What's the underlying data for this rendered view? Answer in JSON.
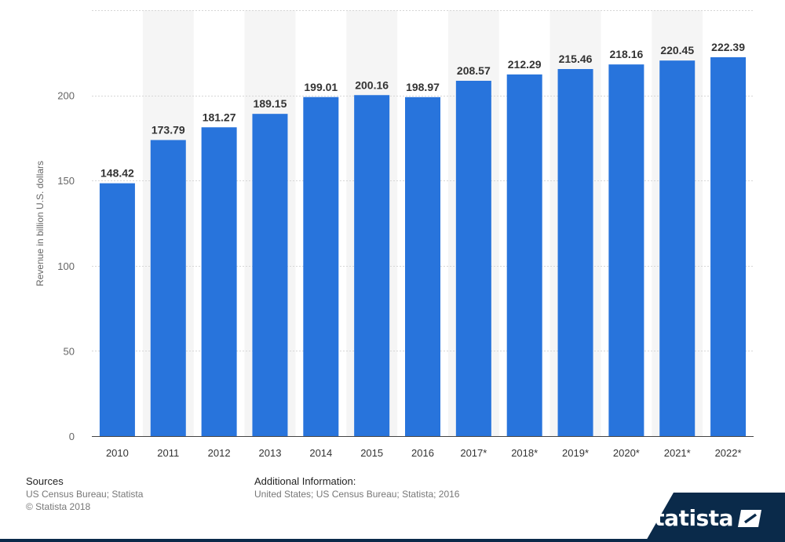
{
  "chart_data": {
    "type": "bar",
    "categories": [
      "2010",
      "2011",
      "2012",
      "2013",
      "2014",
      "2015",
      "2016",
      "2017*",
      "2018*",
      "2019*",
      "2020*",
      "2021*",
      "2022*"
    ],
    "values": [
      148.42,
      173.79,
      181.27,
      189.15,
      199.01,
      200.16,
      198.97,
      208.57,
      212.29,
      215.46,
      218.16,
      220.45,
      222.39
    ],
    "data_labels": [
      "148.42",
      "173.79",
      "181.27",
      "189.15",
      "199.01",
      "200.16",
      "198.97",
      "208.57",
      "212.29",
      "215.46",
      "218.16",
      "220.45",
      "222.39"
    ],
    "yticks": [
      "0",
      "50",
      "100",
      "150",
      "200"
    ],
    "ylim": [
      0,
      250
    ],
    "xlabel": "",
    "ylabel": "Revenue in billion U.S. dollars",
    "grid": true,
    "bar_color": "#2874dc",
    "alt_column_band_color": "#f5f5f5"
  },
  "footer": {
    "sources_title": "Sources",
    "sources_lines": [
      "US Census Bureau; Statista",
      "© Statista 2018"
    ],
    "additional_title": "Additional Information:",
    "additional_line": "United States; US Census Bureau; Statista; 2016"
  },
  "logo": {
    "text": "statista",
    "background": "#0a2a4a"
  }
}
